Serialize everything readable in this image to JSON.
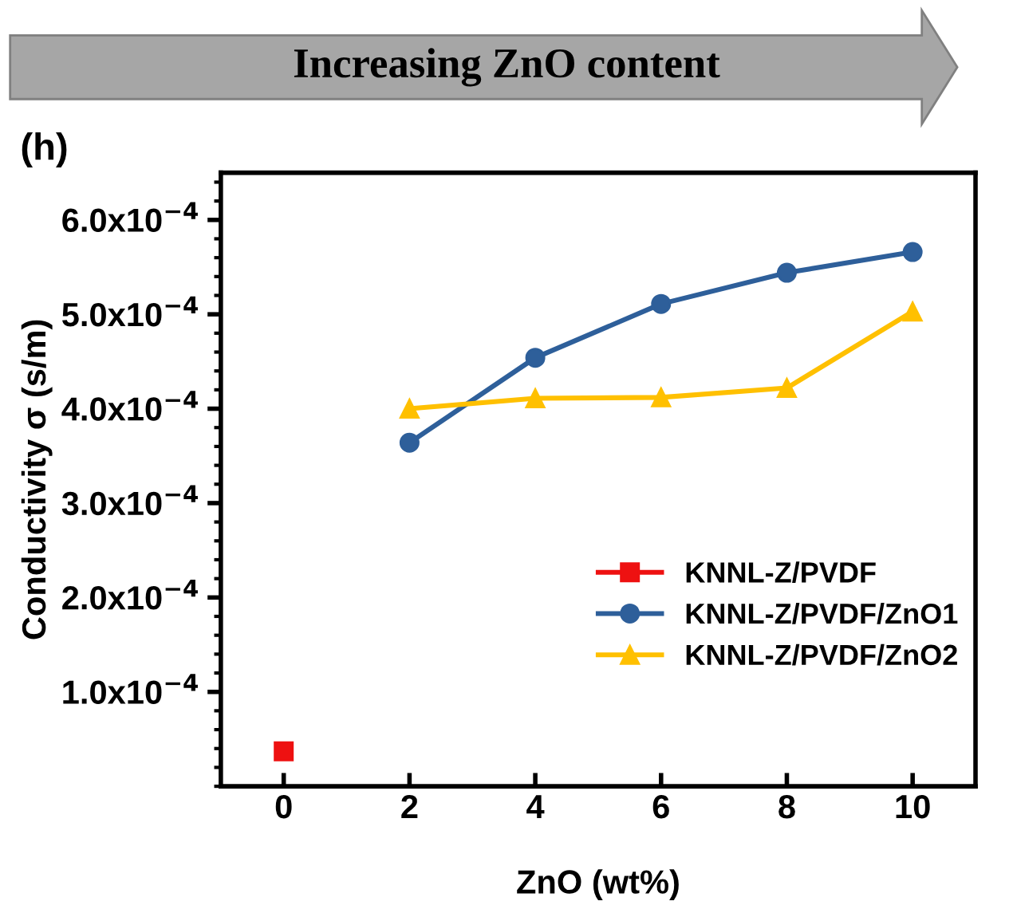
{
  "chart_data": {
    "type": "line",
    "xlabel": "ZnO (wt%)",
    "ylabel": "Conductivity σ (s/m)",
    "annotations": [
      "Increasing ZnO content",
      "(h)"
    ],
    "series": [
      {
        "name": "KNNL-Z/PVDF",
        "color": "#ee1111",
        "marker": "square",
        "x": [
          0
        ],
        "values": [
          3.7e-05
        ]
      },
      {
        "name": "KNNL-Z/PVDF/ZnO1",
        "color": "#2e5f9a",
        "marker": "circle",
        "x": [
          2,
          4,
          6,
          8,
          10
        ],
        "values": [
          0.000364,
          0.000454,
          0.000511,
          0.000544,
          0.000566
        ]
      },
      {
        "name": "KNNL-Z/PVDF/ZnO2",
        "color": "#ffc000",
        "marker": "triangle",
        "x": [
          2,
          4,
          6,
          8,
          10
        ],
        "values": [
          0.0004,
          0.000411,
          0.000412,
          0.000422,
          0.000503
        ]
      }
    ],
    "xlim": [
      -1,
      11
    ],
    "xticks": [
      0,
      2,
      4,
      6,
      8,
      10
    ],
    "ylim": [
      0,
      0.00065
    ],
    "yticks": [
      {
        "value": 0.0001,
        "label": "1.0x10$^{−4}$"
      },
      {
        "value": 0.0002,
        "label": "2.0x10$^{−4}$"
      },
      {
        "value": 0.0003,
        "label": "3.0x10$^{−4}$"
      },
      {
        "value": 0.0004,
        "label": "4.0x10$^{−4}$"
      },
      {
        "value": 0.0005,
        "label": "5.0x10$^{−4}$"
      },
      {
        "value": 0.0006,
        "label": "6.0x10$^{−4}$"
      }
    ],
    "grid": false,
    "legend": "bottom right",
    "line_style": "solid"
  }
}
